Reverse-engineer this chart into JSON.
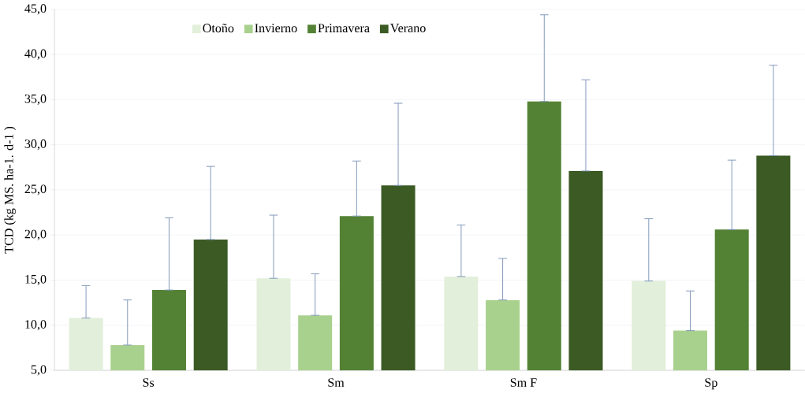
{
  "chart_data": {
    "type": "bar",
    "ylabel": "TCD (kg  MS. ha-1. d-1 )",
    "categories": [
      "Ss",
      "Sm",
      "Sm F",
      "Sp"
    ],
    "series": [
      {
        "name": "Otoño",
        "color": "#e2efda",
        "values": [
          10.8,
          15.2,
          15.4,
          14.9
        ],
        "errors": [
          [
            10.8,
            14.4
          ],
          [
            15.2,
            22.2
          ],
          [
            15.4,
            21.1
          ],
          [
            14.9,
            21.8
          ]
        ]
      },
      {
        "name": "Invierno",
        "color": "#a9d18e",
        "values": [
          7.8,
          11.1,
          12.8,
          9.4
        ],
        "errors": [
          [
            7.8,
            12.8
          ],
          [
            11.1,
            15.7
          ],
          [
            12.8,
            17.4
          ],
          [
            9.4,
            13.8
          ]
        ]
      },
      {
        "name": "Primavera",
        "color": "#548235",
        "values": [
          13.9,
          22.1,
          34.8,
          20.6
        ],
        "errors": [
          [
            13.9,
            21.9
          ],
          [
            22.1,
            28.2
          ],
          [
            34.8,
            44.4
          ],
          [
            20.6,
            28.3
          ]
        ]
      },
      {
        "name": "Verano",
        "color": "#3b5a24",
        "values": [
          19.5,
          25.5,
          27.1,
          28.8
        ],
        "errors": [
          [
            19.5,
            27.6
          ],
          [
            25.5,
            34.6
          ],
          [
            27.1,
            37.2
          ],
          [
            28.8,
            38.8
          ]
        ]
      }
    ],
    "ylim": [
      5,
      45
    ],
    "yticks": [
      {
        "value": 5,
        "label": "5,0"
      },
      {
        "value": 10,
        "label": "10,0"
      },
      {
        "value": 15,
        "label": "15,0"
      },
      {
        "value": 20,
        "label": "20,0"
      },
      {
        "value": 25,
        "label": "25,0"
      },
      {
        "value": 30,
        "label": "30,0"
      },
      {
        "value": 35,
        "label": "35,0"
      },
      {
        "value": 40,
        "label": "40,0"
      },
      {
        "value": 45,
        "label": "45,0"
      }
    ],
    "grid": "y",
    "legend": "top left"
  }
}
